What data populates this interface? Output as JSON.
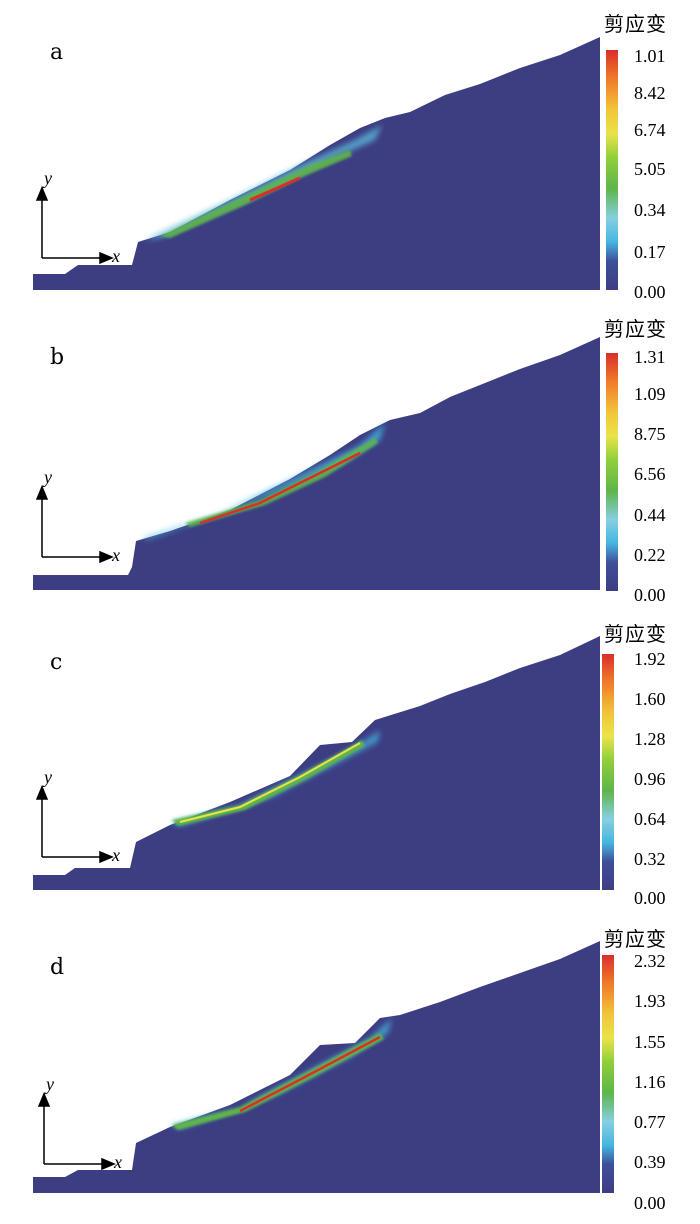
{
  "colors": {
    "background_band": "#3d3d82",
    "scale": [
      "#3d3d82",
      "#3f4f9a",
      "#45b6e0",
      "#86cfe0",
      "#5fb54b",
      "#8fcf3a",
      "#e9e34a",
      "#f2c53a",
      "#f07b2a",
      "#d92e2a"
    ]
  },
  "panels": [
    {
      "label": "a",
      "colorbar_title": "剪应变",
      "ticks": [
        "1.01",
        "8.42",
        "6.74",
        "5.05",
        "0.34",
        "0.17",
        "0.00"
      ]
    },
    {
      "label": "b",
      "colorbar_title": "剪应变",
      "ticks": [
        "1.31",
        "1.09",
        "8.75",
        "6.56",
        "0.44",
        "0.22",
        "0.00"
      ]
    },
    {
      "label": "c",
      "colorbar_title": "剪应变",
      "ticks": [
        "1.92",
        "1.60",
        "1.28",
        "0.96",
        "0.64",
        "0.32",
        "0.00"
      ]
    },
    {
      "label": "d",
      "colorbar_title": "剪应变",
      "ticks": [
        "2.32",
        "1.93",
        "1.55",
        "1.16",
        "0.77",
        "0.39",
        "0.00"
      ]
    }
  ],
  "axes": {
    "x_label": "x",
    "y_label": "y"
  }
}
